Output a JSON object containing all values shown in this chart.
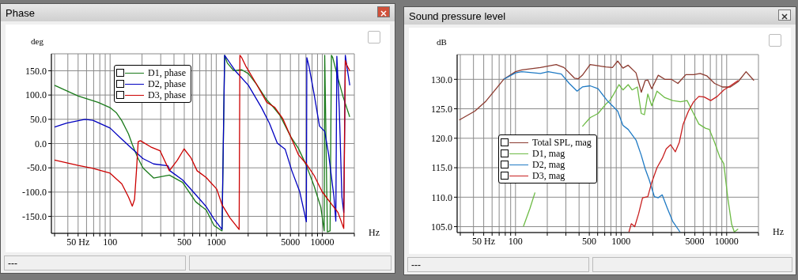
{
  "chart_data": [
    {
      "type": "line",
      "title": "Phase",
      "xlabel": "Hz",
      "ylabel": "deg",
      "log": "x",
      "grid": true,
      "legend": "top left",
      "marker": "none",
      "annotations": [
        "---"
      ],
      "xlim": [
        28,
        20000
      ],
      "ylim": [
        -185,
        185
      ],
      "xticks": [
        {
          "value": 30,
          "label": null
        },
        {
          "value": 40,
          "label": null
        },
        {
          "value": 50,
          "label": "50 Hz"
        },
        {
          "value": 60,
          "label": null
        },
        {
          "value": 70,
          "label": null
        },
        {
          "value": 80,
          "label": null
        },
        {
          "value": 90,
          "label": null
        },
        100,
        {
          "value": 200,
          "label": null
        },
        {
          "value": 300,
          "label": null
        },
        {
          "value": 400,
          "label": null
        },
        500,
        {
          "value": 600,
          "label": null
        },
        {
          "value": 700,
          "label": null
        },
        {
          "value": 800,
          "label": null
        },
        {
          "value": 900,
          "label": null
        },
        1000,
        {
          "value": 2000,
          "label": null
        },
        {
          "value": 3000,
          "label": null
        },
        {
          "value": 4000,
          "label": null
        },
        5000,
        {
          "value": 6000,
          "label": null
        },
        {
          "value": 7000,
          "label": null
        },
        {
          "value": 8000,
          "label": null
        },
        {
          "value": 9000,
          "label": null
        },
        10000,
        {
          "value": 20000,
          "label": null
        }
      ],
      "yticks": [
        {
          "value": -150,
          "label": "-150.0"
        },
        {
          "value": -100,
          "label": "-100.0"
        },
        {
          "value": -50,
          "label": "-50.0"
        },
        {
          "value": 0,
          "label": "0.0"
        },
        {
          "value": 50,
          "label": "50.0"
        },
        {
          "value": 100,
          "label": "100.0"
        },
        {
          "value": 150,
          "label": "150.0"
        }
      ],
      "series": [
        {
          "name": "D1, phase",
          "color": "#1a7a1a",
          "x": [
            30,
            50,
            77,
            100,
            115,
            129,
            149,
            162,
            182,
            204,
            257,
            362,
            482,
            641,
            805,
            955,
            1134,
            1200,
            1271,
            1466,
            1740,
            2010,
            2385,
            2995,
            3455,
            3985,
            5010,
            5945,
            7066,
            8375,
            9665,
            10400,
            10525,
            11150,
            11820,
            12170,
            12530,
            14100,
            15700,
            18100
          ],
          "values": [
            120,
            98,
            85,
            74,
            63,
            47,
            20,
            -2,
            -29,
            -50,
            -71,
            -65,
            -80,
            -120,
            -137,
            -169,
            -180,
            182,
            166,
            150,
            152,
            144,
            123,
            90,
            75,
            58,
            15,
            -10,
            -45,
            -88,
            -131,
            -180,
            182,
            -182,
            -180,
            182,
            177,
            133,
            96,
            55
          ]
        },
        {
          "name": "D2, phase",
          "color": "#0000c0",
          "x": [
            30,
            39,
            58,
            69,
            100,
            129,
            162,
            204,
            257,
            351,
            366,
            482,
            604,
            805,
            955,
            1134,
            1200,
            1271,
            1510,
            2010,
            2672,
            3170,
            3763,
            4466,
            5155,
            6118,
            7066,
            7140,
            7470,
            8375,
            9395,
            10525,
            11470,
            12860,
            13390,
            13690,
            14420,
            15280,
            15900,
            16450,
            17120,
            18130
          ],
          "values": [
            34,
            42,
            50,
            48,
            32,
            9,
            -11,
            -31,
            -42,
            -46,
            -56,
            -75,
            -99,
            -130,
            -156,
            -177,
            182,
            174,
            150,
            120,
            74,
            42,
            1,
            -12,
            -56,
            -99,
            -161,
            177,
            160,
            101,
            36,
            25,
            -23,
            -110,
            -160,
            180,
            74,
            -110,
            -142,
            182,
            155,
            120
          ]
        },
        {
          "name": "D3, phase",
          "color": "#cc0000",
          "x": [
            30,
            50,
            69,
            100,
            129,
            149,
            162,
            170,
            177,
            184,
            193,
            242,
            296,
            362,
            431,
            498,
            577,
            660,
            805,
            1012,
            1134,
            1346,
            1644,
            1671,
            1740,
            1895,
            2385,
            2995,
            3545,
            4220,
            5010,
            5945,
            7066,
            8375,
            9940,
            11820,
            14040,
            15900,
            16450,
            17120,
            18130
          ],
          "values": [
            -34,
            -45,
            -51,
            -61,
            -83,
            -110,
            -129,
            -115,
            -58,
            4,
            6,
            -7,
            -15,
            -56,
            -34,
            -11,
            -29,
            -56,
            -70,
            -94,
            -126,
            -153,
            -177,
            182,
            177,
            160,
            123,
            85,
            75,
            52,
            15,
            -23,
            -42,
            -66,
            -99,
            -121,
            -142,
            -175,
            171,
            160,
            150
          ]
        }
      ]
    },
    {
      "type": "line",
      "title": "Sound pressure level",
      "xlabel": "Hz",
      "ylabel": "dB",
      "log": "x",
      "grid": true,
      "legend": "left",
      "marker": "none",
      "annotations": [
        "---"
      ],
      "xlim": [
        28,
        20000
      ],
      "ylim": [
        104,
        134.2
      ],
      "xticks": [
        {
          "value": 30,
          "label": null
        },
        {
          "value": 40,
          "label": null
        },
        {
          "value": 50,
          "label": "50 Hz"
        },
        {
          "value": 60,
          "label": null
        },
        {
          "value": 70,
          "label": null
        },
        {
          "value": 80,
          "label": null
        },
        {
          "value": 90,
          "label": null
        },
        100,
        {
          "value": 200,
          "label": null
        },
        {
          "value": 300,
          "label": null
        },
        {
          "value": 400,
          "label": null
        },
        500,
        {
          "value": 600,
          "label": null
        },
        {
          "value": 700,
          "label": null
        },
        {
          "value": 800,
          "label": null
        },
        {
          "value": 900,
          "label": null
        },
        1000,
        {
          "value": 2000,
          "label": null
        },
        {
          "value": 3000,
          "label": null
        },
        {
          "value": 4000,
          "label": null
        },
        5000,
        {
          "value": 6000,
          "label": null
        },
        {
          "value": 7000,
          "label": null
        },
        {
          "value": 8000,
          "label": null
        },
        {
          "value": 9000,
          "label": null
        },
        10000,
        {
          "value": 20000,
          "label": null
        }
      ],
      "yticks": [
        {
          "value": 105,
          "label": "105.0"
        },
        {
          "value": 110,
          "label": "110.0"
        },
        {
          "value": 115,
          "label": "115.0"
        },
        {
          "value": 120,
          "label": "120.0"
        },
        {
          "value": 125,
          "label": "125.0"
        },
        {
          "value": 130,
          "label": "130.0"
        }
      ],
      "series": [
        {
          "name": "Total SPL, mag",
          "color": "#8b3a2f",
          "x": [
            29.3,
            41.2,
            51.9,
            61.5,
            77.3,
            100,
            115,
            172,
            243,
            288,
            362,
            394,
            430,
            509,
            605,
            718,
            828,
            929,
            1041,
            1167,
            1385,
            1553,
            1692,
            1791,
            1951,
            2250,
            2595,
            2993,
            3453,
            4100,
            4866,
            5612,
            6473,
            7686,
            9125,
            10830,
            12850,
            15270,
            18120
          ],
          "values": [
            123.1,
            124.6,
            126.2,
            127.8,
            130.0,
            131.3,
            131.6,
            132.0,
            132.5,
            132.0,
            130.2,
            130.1,
            130.7,
            132.5,
            132.3,
            132.1,
            132.0,
            133.1,
            131.9,
            132.4,
            131.1,
            127.8,
            129.8,
            129.9,
            128.4,
            130.7,
            130.0,
            130.0,
            129.3,
            130.8,
            130.8,
            131.0,
            130.6,
            129.3,
            128.7,
            128.7,
            129.6,
            131.3,
            129.8
          ]
        },
        {
          "name": "D1, mag",
          "color": "#6dbb45",
          "x": [
            118.7,
            137,
            153,
            182,
            216,
            272,
            342,
            430,
            509,
            605,
            718,
            783,
            853,
            955,
            1041,
            1167,
            1271,
            1426,
            1553,
            1663,
            1791,
            1951,
            2188,
            2595,
            3083,
            3657,
            4220,
            4730,
            5456,
            6296,
            6860,
            7686,
            8610,
            9390,
            10240,
            11150,
            11810,
            12850
          ],
          "values": [
            105.0,
            108.1,
            110.8,
            null,
            null,
            null,
            null,
            122.0,
            123.5,
            124.2,
            125.8,
            126.4,
            127.5,
            129.1,
            128.2,
            129.1,
            128.2,
            128.7,
            124.2,
            124.0,
            127.5,
            125.5,
            128.0,
            126.9,
            126.4,
            126.2,
            126.4,
            124.6,
            122.4,
            121.7,
            121.5,
            119.3,
            116.8,
            115.7,
            109.9,
            105.4,
            104.1,
            104.6
          ]
        },
        {
          "name": "D2, mag",
          "color": "#1f7ac4",
          "x": [
            77.3,
            100,
            115,
            172,
            204,
            272,
            323,
            383,
            430,
            509,
            605,
            738,
            828,
            929,
            1041,
            1167,
            1385,
            1553,
            1692,
            1843,
            2066,
            2250,
            2451,
            2745,
            3081,
            3612
          ],
          "values": [
            130.0,
            131.1,
            131.3,
            131.0,
            131.3,
            130.9,
            129.3,
            128.0,
            128.7,
            128.9,
            128.4,
            126.4,
            125.5,
            124.6,
            122.2,
            121.5,
            119.7,
            117.1,
            114.8,
            113.0,
            110.1,
            109.9,
            110.4,
            108.1,
            105.9,
            104.1
          ]
        },
        {
          "name": "D3, mag",
          "color": "#c82020",
          "x": [
            1187,
            1249,
            1346,
            1466,
            1597,
            1791,
            1951,
            2188,
            2455,
            2675,
            2945,
            3263,
            3558,
            3873,
            4346,
            4866,
            5456,
            6120,
            7066,
            8150,
            9390,
            10830,
            12850
          ],
          "values": [
            104.1,
            105.5,
            105.0,
            107.2,
            109.9,
            110.1,
            112.5,
            115.0,
            116.6,
            118.2,
            118.9,
            117.7,
            119.3,
            122.4,
            124.6,
            126.2,
            127.1,
            127.0,
            126.4,
            127.1,
            128.2,
            128.9,
            129.8
          ]
        }
      ]
    }
  ]
}
